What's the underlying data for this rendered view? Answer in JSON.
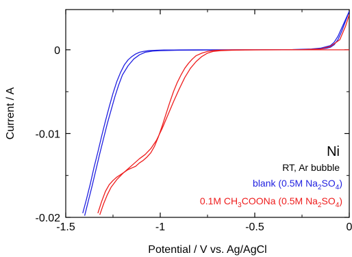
{
  "chart_data": {
    "type": "line",
    "xlabel": "Potential / V vs. Ag/AgCl",
    "ylabel": "Current / A",
    "xlim": [
      -1.5,
      0
    ],
    "ylim": [
      -0.02,
      0.0048
    ],
    "xticks": [
      -1.5,
      -1,
      -0.5,
      0
    ],
    "xtick_labels": [
      "-1.5",
      "-1",
      "-0.5",
      "0"
    ],
    "yticks": [
      -0.02,
      -0.01,
      0
    ],
    "ytick_labels": [
      "-0.02",
      "-0.01",
      "0"
    ],
    "grid": false,
    "annotations": {
      "ni": "Ni",
      "conditions": "RT, Ar bubble",
      "blank_prefix": "blank (0.5M Na",
      "blank_sub2": "2",
      "blank_mid": "SO",
      "blank_sub4": "4",
      "blank_suffix": ")",
      "acetate_prefix": "0.1M CH",
      "acetate_sub3": "3",
      "acetate_mid": "COONa (0.5M Na",
      "acetate_sub2": "2",
      "acetate_mid2": "SO",
      "acetate_sub4": "4",
      "acetate_suffix": ")"
    },
    "series": [
      {
        "name": "blank (0.5M Na2SO4)",
        "color": "#1f1fe0",
        "x": [
          -1.41,
          -1.39,
          -1.37,
          -1.35,
          -1.33,
          -1.31,
          -1.29,
          -1.27,
          -1.25,
          -1.23,
          -1.21,
          -1.19,
          -1.17,
          -1.15,
          -1.13,
          -1.11,
          -1.09,
          -1.06,
          -1.02,
          -0.98,
          -0.9,
          -0.8,
          -0.7,
          -0.6,
          -0.5,
          -0.4,
          -0.3,
          -0.25,
          -0.2,
          -0.15,
          -0.12,
          -0.1,
          -0.08,
          -0.06,
          -0.04,
          -0.02,
          0.0
        ],
        "y": [
          -0.0195,
          -0.0178,
          -0.016,
          -0.014,
          -0.0122,
          -0.0103,
          -0.0085,
          -0.0068,
          -0.0052,
          -0.0038,
          -0.0027,
          -0.0018,
          -0.0012,
          -0.0008,
          -0.0005,
          -0.0003,
          -0.0002,
          -0.0001,
          -6e-05,
          -3e-05,
          -2e-05,
          -1e-05,
          0.0,
          0.0,
          0.0,
          0.0,
          0.0,
          2e-05,
          5e-05,
          0.0001,
          0.00018,
          0.0003,
          0.0006,
          0.0012,
          0.0022,
          0.0034,
          0.0046
        ]
      },
      {
        "name": "blank (0.5M Na2SO4) return sweep",
        "color": "#1f1fe0",
        "x": [
          0.0,
          -0.02,
          -0.04,
          -0.06,
          -0.08,
          -0.1,
          -0.15,
          -0.2,
          -0.3,
          -0.5,
          -0.7,
          -0.9,
          -1.0,
          -1.04,
          -1.08,
          -1.11,
          -1.14,
          -1.17,
          -1.2,
          -1.22,
          -1.24,
          -1.26,
          -1.28,
          -1.3,
          -1.32,
          -1.34,
          -1.36,
          -1.38,
          -1.4
        ],
        "y": [
          0.0046,
          0.0036,
          0.0026,
          0.0016,
          0.0009,
          0.0005,
          0.0002,
          0.0001,
          3e-05,
          0.0,
          -2e-05,
          -5e-05,
          -0.0001,
          -0.00015,
          -0.0003,
          -0.0006,
          -0.0011,
          -0.0019,
          -0.003,
          -0.0042,
          -0.0056,
          -0.0072,
          -0.0088,
          -0.0106,
          -0.0124,
          -0.0143,
          -0.0162,
          -0.018,
          -0.0198
        ]
      },
      {
        "name": "0.1M CH3COONa (0.5M Na2SO4)",
        "color": "#ee1c1c",
        "x": [
          -1.33,
          -1.31,
          -1.29,
          -1.27,
          -1.25,
          -1.23,
          -1.21,
          -1.19,
          -1.17,
          -1.15,
          -1.13,
          -1.11,
          -1.09,
          -1.07,
          -1.05,
          -1.03,
          -1.01,
          -0.99,
          -0.97,
          -0.95,
          -0.93,
          -0.91,
          -0.89,
          -0.87,
          -0.85,
          -0.83,
          -0.81,
          -0.78,
          -0.75,
          -0.72,
          -0.68,
          -0.62,
          -0.55,
          -0.45,
          -0.35,
          -0.25,
          -0.15,
          -0.08,
          -0.04,
          0.0
        ],
        "y": [
          -0.0195,
          -0.0181,
          -0.0169,
          -0.0161,
          -0.0156,
          -0.0152,
          -0.0149,
          -0.0146,
          -0.0143,
          -0.0141,
          -0.0139,
          -0.0135,
          -0.0132,
          -0.0128,
          -0.0123,
          -0.0115,
          -0.0104,
          -0.0091,
          -0.0077,
          -0.0063,
          -0.005,
          -0.0039,
          -0.003,
          -0.0022,
          -0.0016,
          -0.0011,
          -0.0007,
          -0.0004,
          -0.0002,
          -0.0001,
          -5e-05,
          -2e-05,
          -1e-05,
          0.0,
          0.0,
          0.0,
          0.0,
          0.0,
          0.0,
          0.0
        ]
      },
      {
        "name": "0.1M CH3COONa (0.5M Na2SO4) return sweep",
        "color": "#ee1c1c",
        "x": [
          0.0,
          -0.02,
          -0.05,
          -0.1,
          -0.15,
          -0.25,
          -0.35,
          -0.45,
          -0.55,
          -0.62,
          -0.68,
          -0.72,
          -0.75,
          -0.78,
          -0.81,
          -0.84,
          -0.87,
          -0.9,
          -0.93,
          -0.96,
          -0.99,
          -1.02,
          -1.05,
          -1.08,
          -1.11,
          -1.14,
          -1.17,
          -1.2,
          -1.23,
          -1.26,
          -1.28,
          -1.3,
          -1.32
        ],
        "y": [
          0.0042,
          0.0028,
          0.0012,
          0.0004,
          0.0001,
          2e-05,
          0.0,
          -1e-05,
          -2e-05,
          -5e-05,
          -0.0001,
          -0.0002,
          -0.0004,
          -0.0008,
          -0.0014,
          -0.0022,
          -0.0033,
          -0.0047,
          -0.0062,
          -0.0078,
          -0.0094,
          -0.0108,
          -0.0118,
          -0.0125,
          -0.013,
          -0.0136,
          -0.0142,
          -0.0148,
          -0.0155,
          -0.0164,
          -0.0173,
          -0.0184,
          -0.0197
        ]
      }
    ]
  }
}
